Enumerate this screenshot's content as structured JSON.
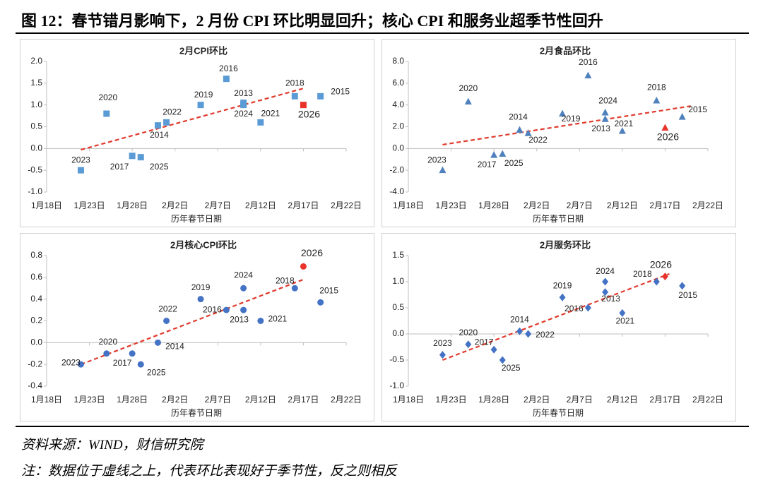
{
  "title": "图 12：春节错月影响下，2 月份 CPI 环比明显回升；核心 CPI 和服务业超季节性回升",
  "source": "资料来源：WIND，财信研究院",
  "note": "注：数据位于虚线之上，代表环比表现好于季节性，反之则相反",
  "chart_data": [
    {
      "type": "scatter",
      "title": "2月CPI环比",
      "xlabel": "历年春节日期",
      "marker": "square",
      "color": "#5b9bd5",
      "x": [
        22,
        25,
        28,
        29,
        31,
        32,
        36,
        39,
        41,
        41,
        43,
        47,
        48,
        50
      ],
      "values": [
        -0.5,
        0.8,
        -0.17,
        -0.2,
        0.53,
        0.6,
        1.0,
        1.6,
        1.0,
        1.05,
        0.6,
        1.2,
        1.0,
        1.2
      ],
      "point_labels": [
        "2023",
        "2020",
        "2017",
        "2025",
        "2014",
        "2022",
        "2019",
        "2016",
        "2013",
        "2024",
        "2021",
        "2018",
        "2026",
        "2015"
      ],
      "point_colors": [
        "#5b9bd5",
        "#5b9bd5",
        "#5b9bd5",
        "#5b9bd5",
        "#5b9bd5",
        "#5b9bd5",
        "#5b9bd5",
        "#5b9bd5",
        "#5b9bd5",
        "#5b9bd5",
        "#5b9bd5",
        "#5b9bd5",
        "#e8322a",
        "#5b9bd5"
      ],
      "trend": {
        "x": [
          22,
          48
        ],
        "values": [
          -0.03,
          1.38
        ],
        "color": "#e03a2c",
        "style": "dashed"
      },
      "xlim": [
        18,
        53
      ],
      "xticks": [
        {
          "value": 18,
          "label": "1月18日"
        },
        {
          "value": 23,
          "label": "1月23日"
        },
        {
          "value": 28,
          "label": "1月28日"
        },
        {
          "value": 33,
          "label": "2月2日"
        },
        {
          "value": 38,
          "label": "2月7日"
        },
        {
          "value": 43,
          "label": "2月12日"
        },
        {
          "value": 48,
          "label": "2月17日"
        },
        {
          "value": 53,
          "label": "2月22日"
        }
      ],
      "ylim": [
        -1,
        2
      ],
      "yticks": [
        {
          "value": -1,
          "label": "-1.0"
        },
        {
          "value": -0.5,
          "label": "-0.5"
        },
        {
          "value": 0,
          "label": "0.0"
        },
        {
          "value": 0.5,
          "label": "0.5"
        },
        {
          "value": 1,
          "label": "1.0"
        },
        {
          "value": 1.5,
          "label": "1.5"
        },
        {
          "value": 2,
          "label": "2.0"
        }
      ]
    },
    {
      "type": "scatter",
      "title": "2月食品环比",
      "xlabel": "历年春节日期",
      "marker": "triangle",
      "color": "#4f81bd",
      "x": [
        22,
        25,
        28,
        29,
        31,
        32,
        36,
        39,
        41,
        41,
        43,
        47,
        48,
        50
      ],
      "values": [
        -2.0,
        4.3,
        -0.6,
        -0.5,
        1.7,
        1.4,
        3.2,
        6.7,
        2.7,
        3.3,
        1.6,
        4.4,
        1.9,
        2.9
      ],
      "point_labels": [
        "2023",
        "2020",
        "2017",
        "2025",
        "2014",
        "2022",
        "2019",
        "2016",
        "2013",
        "2024",
        "2021",
        "2018",
        "2026",
        "2015"
      ],
      "point_colors": [
        "#4f81bd",
        "#4f81bd",
        "#4f81bd",
        "#4f81bd",
        "#4f81bd",
        "#4f81bd",
        "#4f81bd",
        "#4f81bd",
        "#4f81bd",
        "#4f81bd",
        "#4f81bd",
        "#4f81bd",
        "#e8322a",
        "#4f81bd"
      ],
      "trend": {
        "x": [
          22,
          51
        ],
        "values": [
          0.35,
          3.9
        ],
        "color": "#e03a2c",
        "style": "dashed"
      },
      "xlim": [
        18,
        53
      ],
      "xticks": [
        {
          "value": 18,
          "label": "1月18日"
        },
        {
          "value": 23,
          "label": "1月23日"
        },
        {
          "value": 28,
          "label": "1月28日"
        },
        {
          "value": 33,
          "label": "2月2日"
        },
        {
          "value": 38,
          "label": "2月7日"
        },
        {
          "value": 43,
          "label": "2月12日"
        },
        {
          "value": 48,
          "label": "2月17日"
        },
        {
          "value": 53,
          "label": "2月22日"
        }
      ],
      "ylim": [
        -4,
        8
      ],
      "yticks": [
        {
          "value": -4,
          "label": "-4.0"
        },
        {
          "value": -2,
          "label": "-2.0"
        },
        {
          "value": 0,
          "label": "0.0"
        },
        {
          "value": 2,
          "label": "2.0"
        },
        {
          "value": 4,
          "label": "4.0"
        },
        {
          "value": 6,
          "label": "6.0"
        },
        {
          "value": 8,
          "label": "8.0"
        }
      ]
    },
    {
      "type": "scatter",
      "title": "2月核心CPI环比",
      "xlabel": "历年春节日期",
      "marker": "circle",
      "color": "#4472c4",
      "x": [
        22,
        25,
        28,
        29,
        31,
        32,
        36,
        39,
        41,
        41,
        43,
        47,
        48,
        50
      ],
      "values": [
        -0.2,
        -0.1,
        -0.1,
        -0.2,
        0.0,
        0.2,
        0.4,
        0.3,
        0.3,
        0.5,
        0.2,
        0.5,
        0.7,
        0.37
      ],
      "point_labels": [
        "2023",
        "2020",
        "2017",
        "2025",
        "2014",
        "2022",
        "2019",
        "2016",
        "2013",
        "2024",
        "2021",
        "2018",
        "2026",
        "2015"
      ],
      "point_colors": [
        "#4472c4",
        "#4472c4",
        "#4472c4",
        "#4472c4",
        "#4472c4",
        "#4472c4",
        "#4472c4",
        "#4472c4",
        "#4472c4",
        "#4472c4",
        "#4472c4",
        "#4472c4",
        "#e8322a",
        "#4472c4"
      ],
      "trend": {
        "x": [
          22,
          48
        ],
        "values": [
          -0.2,
          0.58
        ],
        "color": "#e03a2c",
        "style": "dashed"
      },
      "xlim": [
        18,
        53
      ],
      "xticks": [
        {
          "value": 18,
          "label": "1月18日"
        },
        {
          "value": 23,
          "label": "1月23日"
        },
        {
          "value": 28,
          "label": "1月28日"
        },
        {
          "value": 33,
          "label": "2月2日"
        },
        {
          "value": 38,
          "label": "2月7日"
        },
        {
          "value": 43,
          "label": "2月12日"
        },
        {
          "value": 48,
          "label": "2月17日"
        },
        {
          "value": 53,
          "label": "2月22日"
        }
      ],
      "ylim": [
        -0.4,
        0.8
      ],
      "yticks": [
        {
          "value": -0.4,
          "label": "-0.4"
        },
        {
          "value": -0.2,
          "label": "-0.2"
        },
        {
          "value": 0,
          "label": "0.0"
        },
        {
          "value": 0.2,
          "label": "0.2"
        },
        {
          "value": 0.4,
          "label": "0.4"
        },
        {
          "value": 0.6,
          "label": "0.6"
        },
        {
          "value": 0.8,
          "label": "0.8"
        }
      ]
    },
    {
      "type": "scatter",
      "title": "2月服务环比",
      "xlabel": "历年春节日期",
      "marker": "diamond",
      "color": "#4472c4",
      "x": [
        22,
        25,
        28,
        29,
        31,
        32,
        36,
        39,
        41,
        41,
        43,
        47,
        48,
        50
      ],
      "values": [
        -0.4,
        -0.2,
        -0.3,
        -0.5,
        0.05,
        0.0,
        0.7,
        0.5,
        0.8,
        1.0,
        0.4,
        1.0,
        1.1,
        0.92
      ],
      "point_labels": [
        "2023",
        "2020",
        "2017",
        "2025",
        "2014",
        "2022",
        "2019",
        "2016",
        "2013",
        "2024",
        "2021",
        "2018",
        "2026",
        "2015"
      ],
      "point_colors": [
        "#4472c4",
        "#4472c4",
        "#4472c4",
        "#4472c4",
        "#4472c4",
        "#4472c4",
        "#4472c4",
        "#4472c4",
        "#4472c4",
        "#4472c4",
        "#4472c4",
        "#4472c4",
        "#e8322a",
        "#4472c4"
      ],
      "trend": {
        "x": [
          22,
          48.5
        ],
        "values": [
          -0.5,
          1.15
        ],
        "color": "#e03a2c",
        "style": "dashed"
      },
      "xlim": [
        18,
        53
      ],
      "xticks": [
        {
          "value": 18,
          "label": "1月18日"
        },
        {
          "value": 23,
          "label": "1月23日"
        },
        {
          "value": 28,
          "label": "1月28日"
        },
        {
          "value": 33,
          "label": "2月2日"
        },
        {
          "value": 38,
          "label": "2月7日"
        },
        {
          "value": 43,
          "label": "2月12日"
        },
        {
          "value": 48,
          "label": "2月17日"
        },
        {
          "value": 53,
          "label": "2月22日"
        }
      ],
      "ylim": [
        -1,
        1.5
      ],
      "yticks": [
        {
          "value": -1,
          "label": "-1.0"
        },
        {
          "value": -0.5,
          "label": "-0.5"
        },
        {
          "value": 0,
          "label": "0.0"
        },
        {
          "value": 0.5,
          "label": "0.5"
        },
        {
          "value": 1,
          "label": "1.0"
        },
        {
          "value": 1.5,
          "label": "1.5"
        }
      ]
    }
  ]
}
